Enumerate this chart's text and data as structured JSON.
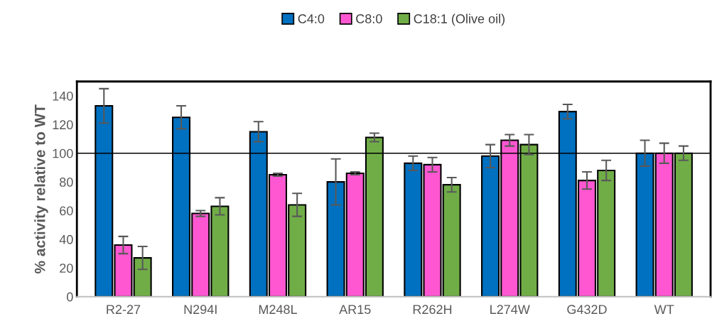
{
  "chart_data": {
    "type": "bar",
    "ylabel": "% activity relative to WT",
    "categories": [
      "R2-27",
      "N294I",
      "M248L",
      "AR15",
      "R262H",
      "L274W",
      "G432D",
      "WT"
    ],
    "series": [
      {
        "name": "C4:0",
        "color": "#0070c0",
        "values": [
          133,
          125,
          115,
          80,
          93,
          98,
          129,
          100
        ],
        "errors": [
          12,
          8,
          7,
          16,
          5,
          8,
          5,
          9
        ]
      },
      {
        "name": "C8:0",
        "color": "#ff57d1",
        "values": [
          36,
          58,
          85,
          86,
          92,
          109,
          81,
          100
        ],
        "errors": [
          6,
          2,
          1,
          1,
          5,
          4,
          6,
          7
        ]
      },
      {
        "name": "C18:1 (Olive oil)",
        "color": "#70ad47",
        "values": [
          27,
          63,
          64,
          111,
          78,
          106,
          88,
          100
        ],
        "errors": [
          8,
          6,
          8,
          3,
          5,
          7,
          7,
          5
        ]
      }
    ],
    "ylim": [
      0,
      150
    ],
    "yticks": [
      0,
      20,
      40,
      60,
      80,
      100,
      120,
      140
    ],
    "ref_lines": [
      {
        "axis": "y",
        "value": 100,
        "color": "#000000"
      }
    ],
    "legend": "top",
    "grid": false
  }
}
